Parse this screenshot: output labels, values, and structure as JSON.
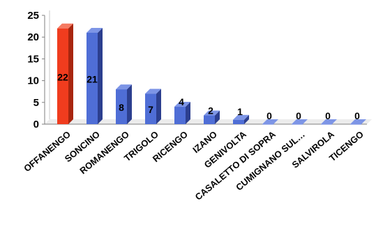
{
  "chart_data": {
    "type": "bar",
    "categories": [
      "OFFANENGO",
      "SONCINO",
      "ROMANENGO",
      "TRIGOLO",
      "RICENGO",
      "IZANO",
      "GENIVOLTA",
      "CASALETTO DI SOPRA",
      "CUMIGNANO SUL…",
      "SALVIROLA",
      "TICENGO"
    ],
    "values": [
      22,
      21,
      8,
      7,
      4,
      2,
      1,
      0,
      0,
      0,
      0
    ],
    "data_labels": [
      "22",
      "21",
      "8",
      "7",
      "4",
      "2",
      "1",
      "0",
      "0",
      "0",
      "0"
    ],
    "ylim": [
      0,
      25
    ],
    "yticks": [
      0,
      5,
      10,
      15,
      20,
      25
    ],
    "ytick_labels": [
      "0",
      "5",
      "10",
      "15",
      "20",
      "25"
    ],
    "grid": false,
    "bar3d": true,
    "colors": {
      "highlight": "#f03c1e",
      "highlight_side": "#a8260f",
      "highlight_top": "#f57a62",
      "default": "#4f6ed6",
      "default_side": "#2c3f8f",
      "default_top": "#7d95e6",
      "axis": "#7f7f7f"
    },
    "highlight_index": 0
  }
}
